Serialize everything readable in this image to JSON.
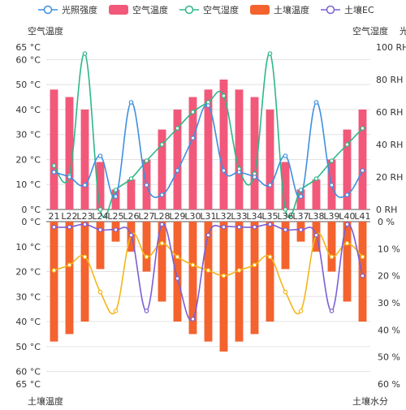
{
  "legend": [
    {
      "label": "光照强度",
      "color": "#3f8fe0",
      "kind": "line-circle"
    },
    {
      "label": "空气温度",
      "color": "#f2587a",
      "kind": "bar"
    },
    {
      "label": "空气湿度",
      "color": "#2db887",
      "kind": "line-circle"
    },
    {
      "label": "土壤温度",
      "color": "#f4622e",
      "kind": "bar"
    },
    {
      "label": "土壤EC",
      "color": "#7b5fd6",
      "kind": "line-circle"
    }
  ],
  "axes": {
    "top_left_title": "空气温度",
    "top_right_title": "空气湿度",
    "top_right_title2": "光",
    "bottom_left_title": "土壤温度",
    "bottom_right_title": "土壤水分",
    "top_left_ticks": [
      "0 °C",
      "10 °C",
      "20 °C",
      "30 °C",
      "40 °C",
      "50 °C",
      "60 °C",
      "65 °C"
    ],
    "top_right_ticks": [
      "0 RH",
      "20 RH",
      "40 RH",
      "60 RH",
      "80 RH",
      "100 RH"
    ],
    "bottom_left_ticks": [
      "0 °C",
      "10 °C",
      "20 °C",
      "30 °C",
      "40 °C",
      "50 °C",
      "60 °C",
      "65 °C"
    ],
    "bottom_right_ticks": [
      "0 %",
      "10 %",
      "20 %",
      "30 %",
      "40 %",
      "50 %",
      "60 %"
    ]
  },
  "chart_data": {
    "type": "bar",
    "categories": [
      "21",
      "22",
      "23",
      "24",
      "25",
      "26",
      "27",
      "28",
      "29",
      "30",
      "31",
      "32",
      "33",
      "34",
      "35",
      "36",
      "37",
      "38",
      "39",
      "40",
      "41"
    ],
    "category_labels": [
      "21",
      "L22",
      "L23",
      "L24",
      "L25",
      "L26",
      "L27",
      "L28",
      "L29",
      "L30",
      "L31",
      "L32",
      "L33",
      "L34",
      "L35",
      "L36",
      "L37",
      "L38",
      "L39",
      "L40",
      "L41"
    ],
    "top": {
      "left_axis": {
        "label": "空气温度",
        "ylim": [
          0,
          65
        ],
        "unit": "°C"
      },
      "right_axis": {
        "label": "空气湿度",
        "ylim": [
          0,
          100
        ],
        "unit": "RH"
      },
      "series": [
        {
          "name": "空气温度",
          "type": "bar",
          "axis": "left",
          "color": "#f2587a",
          "values": [
            48,
            45,
            40,
            19,
            8,
            12,
            20,
            32,
            40,
            45,
            48,
            52,
            48,
            45,
            40,
            19,
            8,
            12,
            20,
            32,
            40
          ]
        },
        {
          "name": "空气湿度",
          "type": "line",
          "axis": "right",
          "color": "#2db887",
          "values": [
            27,
            21,
            96,
            0,
            12,
            19,
            30,
            40,
            50,
            60,
            66,
            70,
            25,
            22,
            96,
            0,
            12,
            19,
            30,
            40,
            50
          ]
        },
        {
          "name": "光照强度",
          "type": "line",
          "axis": "right",
          "color": "#3f8fe0",
          "values": [
            23,
            20,
            15,
            33,
            8,
            66,
            15,
            9,
            24,
            44,
            64,
            24,
            23,
            20,
            15,
            33,
            8,
            66,
            15,
            9,
            24
          ]
        }
      ]
    },
    "bottom": {
      "left_axis": {
        "label": "土壤温度",
        "ylim": [
          0,
          65
        ],
        "unit": "°C",
        "inverted": true
      },
      "right_axis": {
        "label": "土壤水分",
        "ylim": [
          0,
          60
        ],
        "unit": "%",
        "inverted": true
      },
      "series": [
        {
          "name": "土壤温度",
          "type": "bar",
          "axis": "left",
          "color": "#f4622e",
          "values": [
            48,
            45,
            40,
            19,
            8,
            12,
            20,
            32,
            40,
            45,
            48,
            52,
            48,
            45,
            40,
            19,
            8,
            12,
            20,
            32,
            40
          ]
        },
        {
          "name": "土壤水分",
          "type": "line",
          "axis": "right",
          "color": "#f2b619",
          "values": [
            18,
            16,
            13,
            26,
            33,
            5,
            13,
            8,
            13,
            16,
            18,
            20,
            18,
            16,
            13,
            26,
            33,
            5,
            13,
            8,
            13
          ]
        },
        {
          "name": "土壤EC",
          "type": "line",
          "axis": "right",
          "color": "#7b5fd6",
          "values": [
            2,
            2,
            1,
            3,
            3,
            5,
            33,
            1,
            21,
            36,
            5,
            2,
            2,
            2,
            1,
            3,
            3,
            5,
            33,
            1,
            20
          ]
        }
      ]
    }
  }
}
